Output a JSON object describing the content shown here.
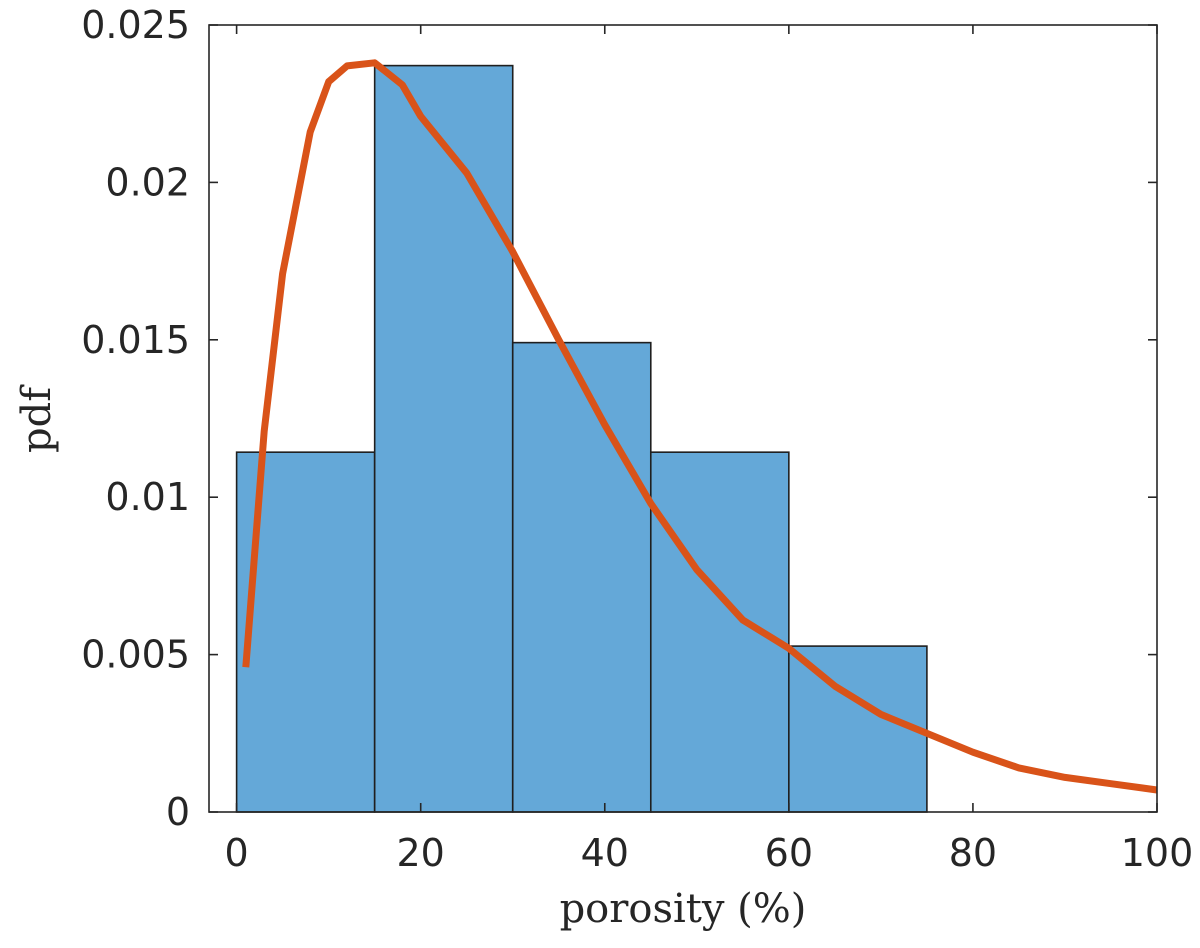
{
  "chart_data": {
    "type": "bar",
    "title": "",
    "xlabel": "porosity (%)",
    "ylabel": "pdf",
    "xlim": [
      -3,
      100
    ],
    "ylim": [
      0,
      0.025
    ],
    "grid": false,
    "xticks": [
      0,
      20,
      40,
      60,
      80,
      100
    ],
    "xtick_labels": [
      "0",
      "20",
      "40",
      "60",
      "80",
      "100"
    ],
    "yticks": [
      0,
      0.005,
      0.01,
      0.015,
      0.02,
      0.025
    ],
    "ytick_labels": [
      "0",
      "0.005",
      "0.01",
      "0.015",
      "0.02",
      "0.025"
    ],
    "histogram": {
      "bin_edges": [
        0,
        15,
        30,
        45,
        60,
        75
      ],
      "values": [
        0.01143,
        0.02371,
        0.01491,
        0.01143,
        0.00527
      ],
      "color": "#64a8d8",
      "edge_color": "#1f1f1f"
    },
    "fit_curve": {
      "type": "line",
      "color": "#d95319",
      "x": [
        1,
        3,
        5,
        8,
        10,
        12,
        15,
        18,
        20,
        25,
        30,
        35,
        40,
        45,
        50,
        55,
        60,
        65,
        70,
        75,
        80,
        85,
        90,
        95,
        100
      ],
      "y": [
        0.0046,
        0.0121,
        0.0171,
        0.0216,
        0.0232,
        0.0237,
        0.0238,
        0.0231,
        0.0221,
        0.0203,
        0.0178,
        0.015,
        0.0123,
        0.0098,
        0.0077,
        0.0061,
        0.0052,
        0.004,
        0.0031,
        0.0025,
        0.0019,
        0.0014,
        0.0011,
        0.0009,
        0.0007
      ]
    }
  }
}
